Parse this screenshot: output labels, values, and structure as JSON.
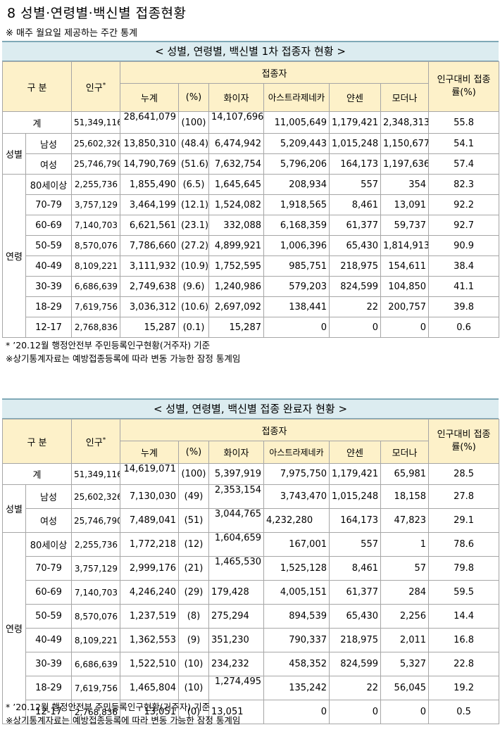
{
  "page": {
    "title": "8 성별·연령별·백신별 접종현황",
    "note": "※ 매주 월요일 제공하는 주간 통계"
  },
  "headers": {
    "category": "구 분",
    "population": "인구",
    "population_mark": "*",
    "vaccinated": "접종자",
    "cumulative": "누계",
    "percent": "(%)",
    "pfizer": "화이자",
    "astrazeneca": "아스트라제네카",
    "janssen": "얀센",
    "moderna": "모더나",
    "rate_line1": "인구대비 접종",
    "rate_line2": "률(%)"
  },
  "group_labels": {
    "sex": "성별",
    "age": "연령"
  },
  "footnotes": {
    "line1": "* ’20.12월 행정안전부 주민등록인구현황(거주자) 기준",
    "line2": "※상기통계자료는 예방접종등록에 따라 변동 가능한 잠정 통계임"
  },
  "table1": {
    "caption": "< 성별, 연령별, 백신별 1차 접종자 현황 >",
    "rows": [
      [
        "계",
        "51,349,116",
        "28,641,079",
        "(100)",
        "14,107,696",
        "11,005,649",
        "1,179,421",
        "2,348,313",
        "55.8"
      ],
      [
        "남성",
        "25,602,326",
        "13,850,310",
        "(48.4)",
        "6,474,942",
        "5,209,443",
        "1,015,248",
        "1,150,677",
        "54.1"
      ],
      [
        "여성",
        "25,746,790",
        "14,790,769",
        "(51.6)",
        "7,632,754",
        "5,796,206",
        "164,173",
        "1,197,636",
        "57.4"
      ],
      [
        "80세이상",
        "2,255,736",
        "1,855,490",
        "(6.5)",
        "1,645,645",
        "208,934",
        "557",
        "354",
        "82.3"
      ],
      [
        "70-79",
        "3,757,129",
        "3,464,199",
        "(12.1)",
        "1,524,082",
        "1,918,565",
        "8,461",
        "13,091",
        "92.2"
      ],
      [
        "60-69",
        "7,140,703",
        "6,621,561",
        "(23.1)",
        "332,088",
        "6,168,359",
        "61,377",
        "59,737",
        "92.7"
      ],
      [
        "50-59",
        "8,570,076",
        "7,786,660",
        "(27.2)",
        "4,899,921",
        "1,006,396",
        "65,430",
        "1,814,913",
        "90.9"
      ],
      [
        "40-49",
        "8,109,221",
        "3,111,932",
        "(10.9)",
        "1,752,595",
        "985,751",
        "218,975",
        "154,611",
        "38.4"
      ],
      [
        "30-39",
        "6,686,639",
        "2,749,638",
        "(9.6)",
        "1,240,986",
        "579,203",
        "824,599",
        "104,850",
        "41.1"
      ],
      [
        "18-29",
        "7,619,756",
        "3,036,312",
        "(10.6)",
        "2,697,092",
        "138,441",
        "22",
        "200,757",
        "39.8"
      ],
      [
        "12-17",
        "2,768,836",
        "15,287",
        "(0.1)",
        "15,287",
        "0",
        "0",
        "0",
        "0.6"
      ]
    ]
  },
  "table2": {
    "caption": "< 성별, 연령별, 백신별 접종 완료자 현황 >",
    "rows": [
      [
        "계",
        "51,349,116",
        "14,619,071",
        "(100)",
        "5,397,919",
        "7,975,750",
        "1,179,421",
        "65,981",
        "28.5"
      ],
      [
        "남성",
        "25,602,326",
        "7,130,030",
        "(49)",
        "2,353,154",
        "3,743,470",
        "1,015,248",
        "18,158",
        "27.8"
      ],
      [
        "여성",
        "25,746,790",
        "7,489,041",
        "(51)",
        "3,044,765",
        "4,232,280",
        "164,173",
        "47,823",
        "29.1"
      ],
      [
        "80세이상",
        "2,255,736",
        "1,772,218",
        "(12)",
        "1,604,659",
        "167,001",
        "557",
        "1",
        "78.6"
      ],
      [
        "70-79",
        "3,757,129",
        "2,999,176",
        "(21)",
        "1,465,530",
        "1,525,128",
        "8,461",
        "57",
        "79.8"
      ],
      [
        "60-69",
        "7,140,703",
        "4,246,240",
        "(29)",
        "179,428",
        "4,005,151",
        "61,377",
        "284",
        "59.5"
      ],
      [
        "50-59",
        "8,570,076",
        "1,237,519",
        "(8)",
        "275,294",
        "894,539",
        "65,430",
        "2,256",
        "14.4"
      ],
      [
        "40-49",
        "8,109,221",
        "1,362,553",
        "(9)",
        "351,230",
        "790,337",
        "218,975",
        "2,011",
        "16.8"
      ],
      [
        "30-39",
        "6,686,639",
        "1,522,510",
        "(10)",
        "234,232",
        "458,352",
        "824,599",
        "5,327",
        "22.8"
      ],
      [
        "18-29",
        "7,619,756",
        "1,465,804",
        "(10)",
        "1,274,495",
        "135,242",
        "22",
        "56,045",
        "19.2"
      ],
      [
        "12-17",
        "2,768,836",
        "13,051",
        "(0)",
        "13,051",
        "0",
        "0",
        "0",
        "0.5"
      ]
    ]
  }
}
